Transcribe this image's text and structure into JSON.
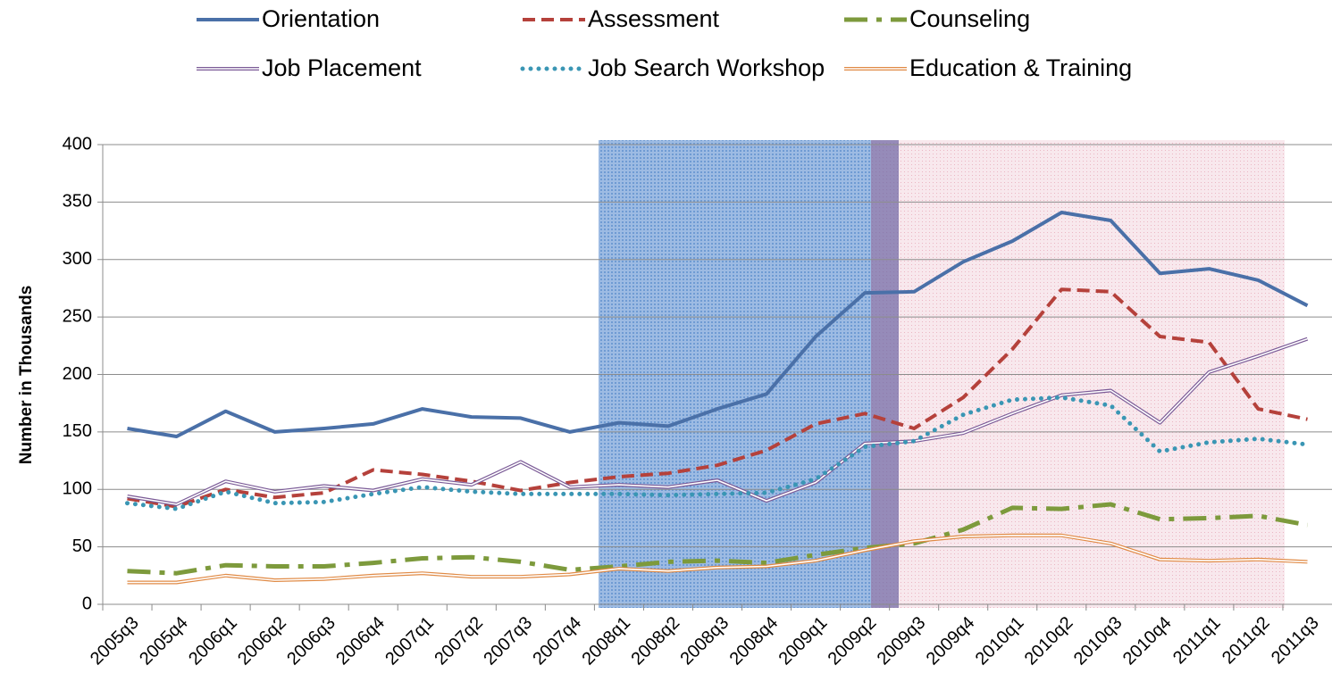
{
  "chart_data": {
    "type": "line",
    "y_label": "Number in Thousands",
    "categories": [
      "2005q3",
      "2005q4",
      "2006q1",
      "2006q2",
      "2006q3",
      "2006q4",
      "2007q1",
      "2007q2",
      "2007q3",
      "2007q4",
      "2008q1",
      "2008q2",
      "2008q3",
      "2008q4",
      "2009q1",
      "2009q2",
      "2009q3",
      "2009q4",
      "2010q1",
      "2010q2",
      "2010q3",
      "2010q4",
      "2011q1",
      "2011q2",
      "2011q3"
    ],
    "series": [
      {
        "name": "Orientation",
        "color": "#4a70a8",
        "style": "solid",
        "values": [
          153,
          146,
          168,
          150,
          153,
          157,
          170,
          163,
          162,
          150,
          158,
          155,
          170,
          183,
          233,
          271,
          272,
          298,
          316,
          341,
          334,
          288,
          292,
          282,
          260
        ]
      },
      {
        "name": "Assessment",
        "color": "#b5413b",
        "style": "dashed",
        "values": [
          92,
          85,
          100,
          93,
          97,
          117,
          113,
          107,
          99,
          106,
          111,
          114,
          121,
          134,
          157,
          166,
          153,
          180,
          222,
          274,
          272,
          233,
          228,
          170,
          161
        ]
      },
      {
        "name": "Counseling",
        "color": "#7d9a3c",
        "style": "dashdot",
        "values": [
          29,
          27,
          34,
          33,
          33,
          36,
          40,
          41,
          37,
          30,
          33,
          37,
          38,
          36,
          43,
          49,
          53,
          65,
          84,
          83,
          87,
          74,
          75,
          77,
          69
        ]
      },
      {
        "name": "Job Placement",
        "color": "#7b5b97",
        "style": "double",
        "values": [
          94,
          87,
          107,
          98,
          103,
          99,
          109,
          104,
          124,
          102,
          104,
          102,
          108,
          90,
          106,
          140,
          142,
          149,
          166,
          182,
          186,
          158,
          202,
          216,
          231
        ]
      },
      {
        "name": "Job Search Workshop",
        "color": "#3a96b4",
        "style": "dotted",
        "values": [
          88,
          83,
          98,
          88,
          89,
          96,
          102,
          98,
          96,
          96,
          96,
          95,
          96,
          97,
          109,
          137,
          142,
          165,
          178,
          180,
          173,
          133,
          141,
          144,
          139
        ]
      },
      {
        "name": "Education & Training",
        "color": "#e08a45",
        "style": "double",
        "values": [
          19,
          19,
          25,
          21,
          22,
          25,
          27,
          24,
          24,
          26,
          31,
          29,
          32,
          33,
          38,
          47,
          55,
          59,
          60,
          60,
          53,
          39,
          38,
          39,
          37
        ]
      }
    ],
    "ylim": [
      0,
      400
    ],
    "yticks": [
      0,
      50,
      100,
      150,
      200,
      250,
      300,
      350,
      400
    ],
    "grid": true
  }
}
